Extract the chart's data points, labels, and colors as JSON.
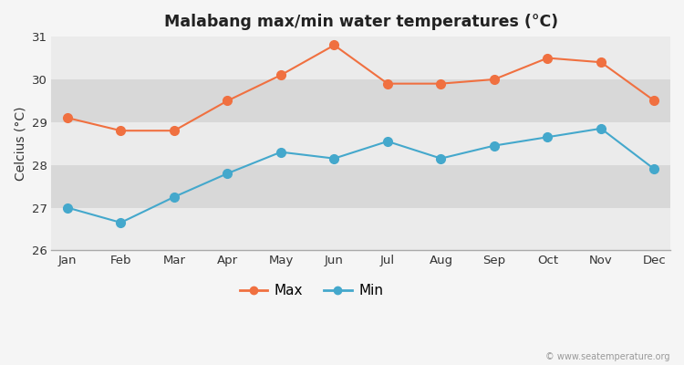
{
  "title": "Malabang max/min water temperatures (°C)",
  "ylabel": "Celcius (°C)",
  "months": [
    "Jan",
    "Feb",
    "Mar",
    "Apr",
    "May",
    "Jun",
    "Jul",
    "Aug",
    "Sep",
    "Oct",
    "Nov",
    "Dec"
  ],
  "max_temps": [
    29.1,
    28.8,
    28.8,
    29.5,
    30.1,
    30.8,
    29.9,
    29.9,
    30.0,
    30.5,
    30.4,
    29.5
  ],
  "min_temps": [
    27.0,
    26.65,
    27.25,
    27.8,
    28.3,
    28.15,
    28.55,
    28.15,
    28.45,
    28.65,
    28.85,
    27.9
  ],
  "max_color": "#f07040",
  "min_color": "#44a8cc",
  "outer_bg": "#f5f5f5",
  "band_light": "#ebebeb",
  "band_dark": "#d8d8d8",
  "ylim_min": 26,
  "ylim_max": 31,
  "yticks": [
    26,
    27,
    28,
    29,
    30,
    31
  ],
  "watermark": "© www.seatemperature.org",
  "legend_max": "Max",
  "legend_min": "Min"
}
